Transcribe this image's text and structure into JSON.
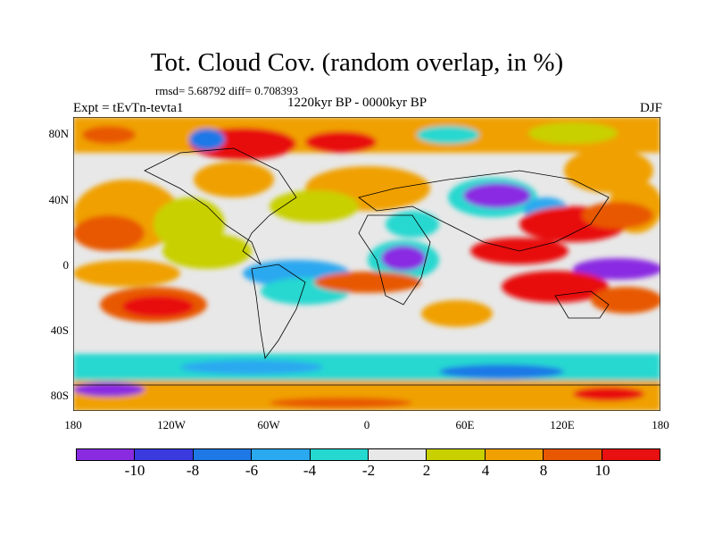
{
  "title": "Tot. Cloud Cov. (random overlap, in %)",
  "stats": "rmsd= 5.68792 diff= 0.708393",
  "expt": "Expt = tEvTn-tevta1",
  "period": "1220kyr BP - 0000kyr BP",
  "season": "DJF",
  "lat_labels": [
    "80N",
    "40N",
    "0",
    "40S",
    "80S"
  ],
  "lon_labels": [
    "180",
    "120W",
    "60W",
    "0",
    "60E",
    "120E",
    "180"
  ],
  "colorbar": {
    "colors": [
      "#8a2be2",
      "#3a3adf",
      "#1e78e6",
      "#2aa8f0",
      "#25d8d0",
      "#e8e8e8",
      "#c8d000",
      "#f0a000",
      "#e85800",
      "#e81010"
    ],
    "labels": [
      "-10",
      "-8",
      "-6",
      "-4",
      "-2",
      "2",
      "4",
      "8",
      "10"
    ]
  }
}
